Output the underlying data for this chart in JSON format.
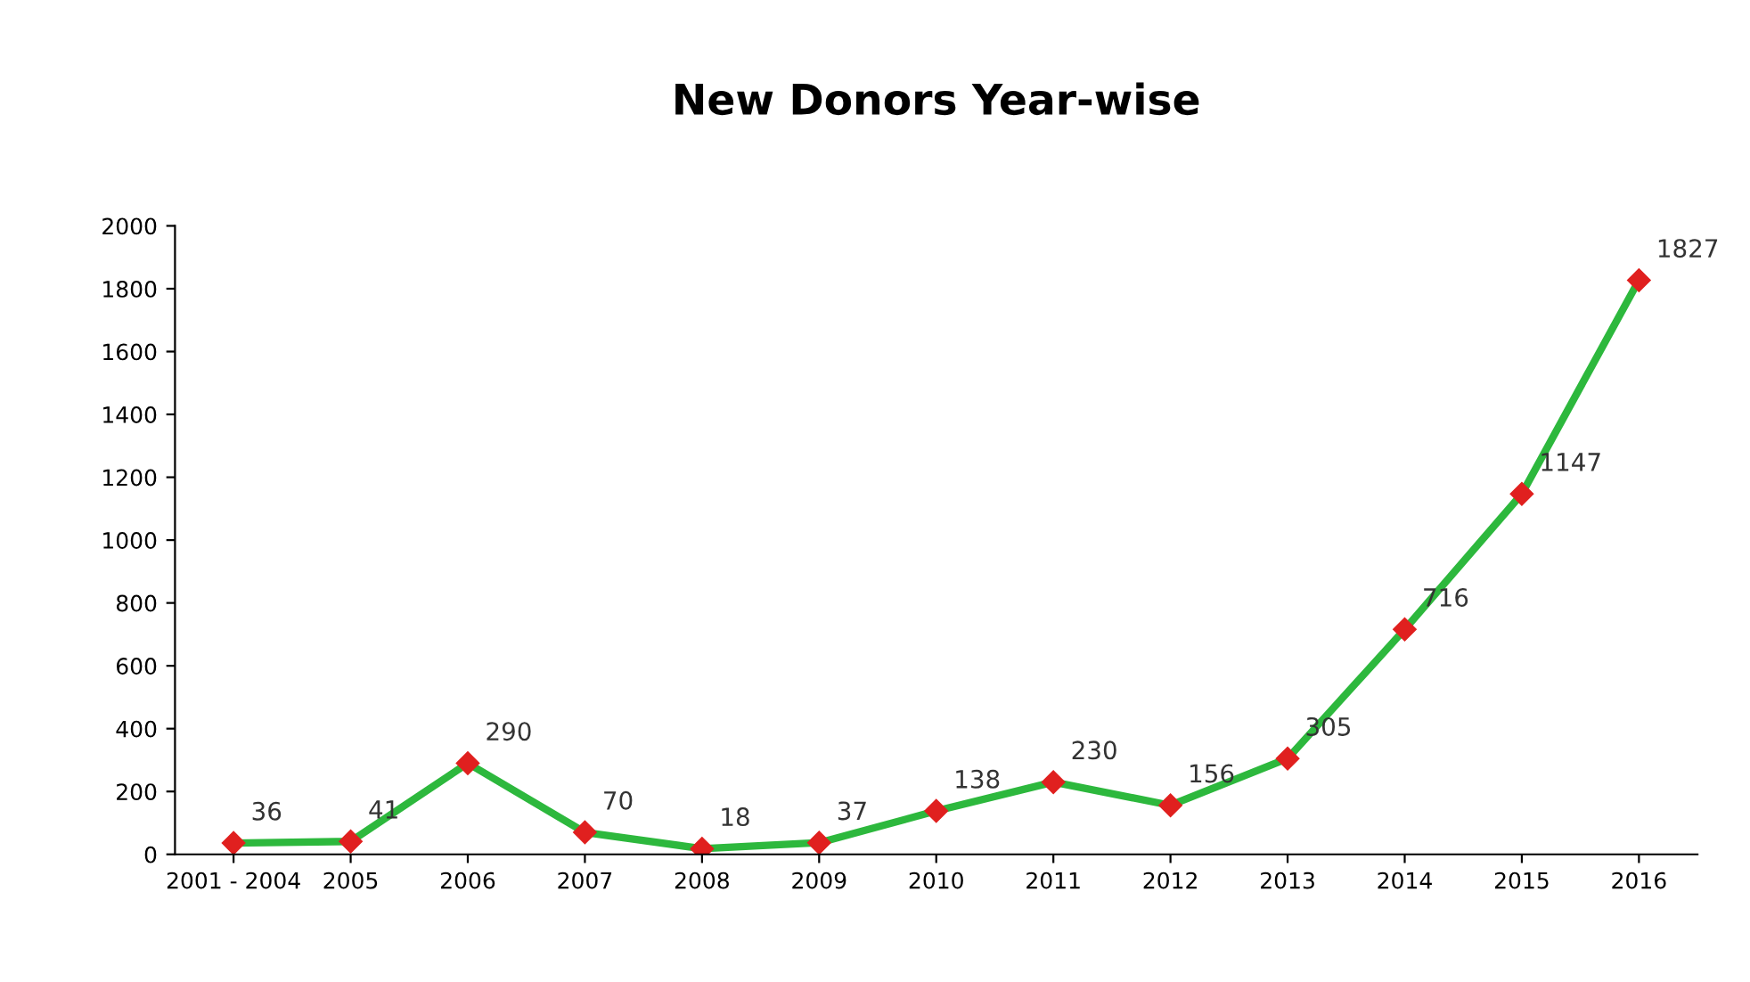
{
  "chart_data": {
    "type": "line",
    "title": "New Donors Year-wise",
    "categories": [
      "2001 - 2004",
      "2005",
      "2006",
      "2007",
      "2008",
      "2009",
      "2010",
      "2011",
      "2012",
      "2013",
      "2014",
      "2015",
      "2016"
    ],
    "series": [
      {
        "color": "#2db83d",
        "values": [
          36,
          41,
          290,
          70,
          18,
          37,
          138,
          230,
          156,
          305,
          716,
          1147,
          1827
        ],
        "colors": [
          "#e0201f",
          "#e0201f",
          "#e0201f",
          "#e0201f",
          "#e0201f",
          "#e0201f",
          "#e0201f",
          "#e0201f",
          "#e0201f",
          "#e0201f",
          "#e0201f",
          "#e0201f",
          "#e0201f"
        ]
      }
    ],
    "marker": "diamond",
    "line_style": "solid",
    "ylim": [
      0,
      2000
    ],
    "yticks": [
      0,
      200,
      400,
      600,
      800,
      1000,
      1200,
      1400,
      1600,
      1800,
      2000
    ],
    "grid": false,
    "legend": false,
    "data_labels": true
  }
}
